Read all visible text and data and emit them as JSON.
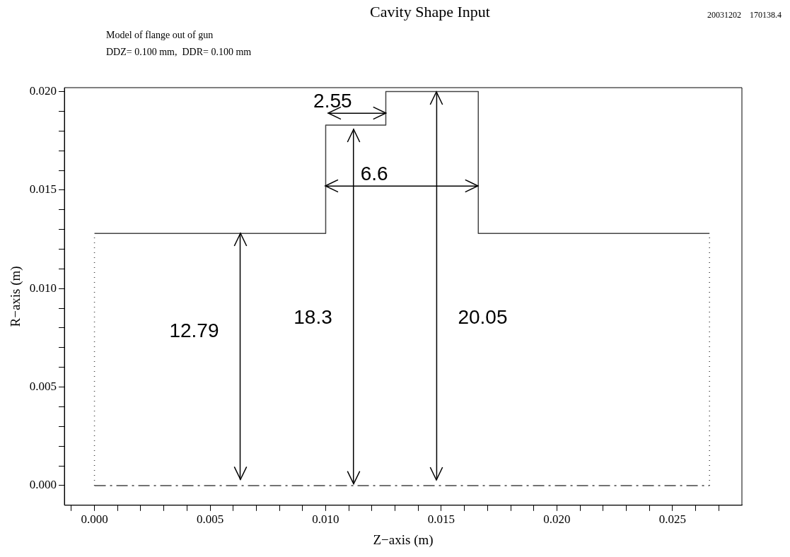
{
  "chart_data": {
    "type": "line",
    "title": "Cavity Shape Input",
    "subtitle": "Model of flange out of gun",
    "xlabel": "Z−axis (m)",
    "ylabel": "R−axis (m)",
    "xlim": [
      -0.0013,
      0.028
    ],
    "ylim": [
      -0.001,
      0.0202
    ],
    "xticks": [
      {
        "value": -0.001,
        "label": null
      },
      {
        "value": 0,
        "label": "0.000"
      },
      {
        "value": 0.001,
        "label": null
      },
      {
        "value": 0.002,
        "label": null
      },
      {
        "value": 0.003,
        "label": null
      },
      {
        "value": 0.004,
        "label": null
      },
      {
        "value": 0.005,
        "label": "0.005"
      },
      {
        "value": 0.006,
        "label": null
      },
      {
        "value": 0.007,
        "label": null
      },
      {
        "value": 0.008,
        "label": null
      },
      {
        "value": 0.009,
        "label": null
      },
      {
        "value": 0.01,
        "label": "0.010"
      },
      {
        "value": 0.011,
        "label": null
      },
      {
        "value": 0.012,
        "label": null
      },
      {
        "value": 0.013,
        "label": null
      },
      {
        "value": 0.014,
        "label": null
      },
      {
        "value": 0.015,
        "label": "0.015"
      },
      {
        "value": 0.016,
        "label": null
      },
      {
        "value": 0.017,
        "label": null
      },
      {
        "value": 0.018,
        "label": null
      },
      {
        "value": 0.019,
        "label": null
      },
      {
        "value": 0.02,
        "label": "0.020"
      },
      {
        "value": 0.021,
        "label": null
      },
      {
        "value": 0.022,
        "label": null
      },
      {
        "value": 0.023,
        "label": null
      },
      {
        "value": 0.024,
        "label": null
      },
      {
        "value": 0.025,
        "label": "0.025"
      },
      {
        "value": 0.026,
        "label": null
      },
      {
        "value": 0.027,
        "label": null
      }
    ],
    "yticks": [
      {
        "value": 0,
        "label": "0.000"
      },
      {
        "value": 0.001,
        "label": null
      },
      {
        "value": 0.002,
        "label": null
      },
      {
        "value": 0.003,
        "label": null
      },
      {
        "value": 0.004,
        "label": null
      },
      {
        "value": 0.005,
        "label": "0.005"
      },
      {
        "value": 0.006,
        "label": null
      },
      {
        "value": 0.007,
        "label": null
      },
      {
        "value": 0.008,
        "label": null
      },
      {
        "value": 0.009,
        "label": null
      },
      {
        "value": 0.01,
        "label": "0.010"
      },
      {
        "value": 0.011,
        "label": null
      },
      {
        "value": 0.012,
        "label": null
      },
      {
        "value": 0.013,
        "label": null
      },
      {
        "value": 0.014,
        "label": null
      },
      {
        "value": 0.015,
        "label": "0.015"
      },
      {
        "value": 0.016,
        "label": null
      },
      {
        "value": 0.017,
        "label": null
      },
      {
        "value": 0.018,
        "label": null
      },
      {
        "value": 0.019,
        "label": null
      },
      {
        "value": 0.02,
        "label": "0.020"
      }
    ],
    "grid": false,
    "legend": false,
    "marker": "none",
    "line_style": "solid",
    "series": [
      {
        "color": "#444444",
        "x": [
          0,
          0.01,
          0.01,
          0.0126,
          0.0126,
          0.0166,
          0.0166,
          0.0266
        ],
        "values": [
          0.0128,
          0.0128,
          0.0183,
          0.0183,
          0.02,
          0.02,
          0.0128,
          0.0128
        ]
      },
      {
        "color": "#444444",
        "line_style": "dotted",
        "x": [
          0,
          0
        ],
        "values": [
          0,
          0.0128
        ]
      },
      {
        "color": "#444444",
        "line_style": "dotted",
        "x": [
          0.0266,
          0.0266
        ],
        "values": [
          0,
          0.0128
        ]
      },
      {
        "color": "#444444",
        "line_style": "dashed",
        "x": [
          0,
          0.0266
        ],
        "values": [
          0,
          0
        ]
      },
      {
        "color": "#000000",
        "x": [
          0.0063,
          0.0063
        ],
        "values": [
          0.0003,
          0.0128
        ]
      },
      {
        "color": "#000000",
        "x": [
          0.0112,
          0.0112
        ],
        "values": [
          0.0001,
          0.0181
        ]
      },
      {
        "color": "#000000",
        "x": [
          0.0148,
          0.0148
        ],
        "values": [
          0.0003,
          0.02
        ]
      },
      {
        "color": "#000000",
        "x": [
          0.01,
          0.0166
        ],
        "values": [
          0.0152,
          0.0152
        ]
      },
      {
        "color": "#000000",
        "x": [
          0.0101,
          0.0126
        ],
        "values": [
          0.0189,
          0.0189
        ]
      }
    ],
    "annotations": [
      "DDZ= 0.100 mm,  DDR= 0.100 mm",
      "20031202    170138.4",
      {
        "text": "12.79",
        "x": 0.0063,
        "y": 0.0078
      },
      {
        "text": "18.3",
        "x": 0.0112,
        "y": 0.0085
      },
      {
        "text": "20.05",
        "x": 0.0148,
        "y": 0.0085
      },
      {
        "text": "6.6",
        "x": 0.0121,
        "y": 0.0152
      },
      {
        "text": "2.55",
        "x": 0.0103,
        "y": 0.0189
      }
    ]
  }
}
